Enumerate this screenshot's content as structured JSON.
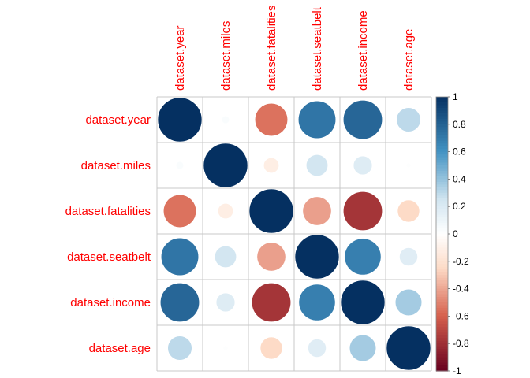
{
  "chart_data": {
    "type": "heatmap",
    "subtype": "correlation-circles",
    "variables": [
      "dataset.year",
      "dataset.miles",
      "dataset.fatalities",
      "dataset.seatbelt",
      "dataset.income",
      "dataset.age"
    ],
    "matrix": [
      [
        1.0,
        0.03,
        -0.55,
        0.72,
        0.78,
        0.3
      ],
      [
        0.03,
        1.0,
        -0.12,
        0.24,
        0.18,
        0.01
      ],
      [
        -0.55,
        -0.12,
        1.0,
        -0.42,
        -0.78,
        -0.25
      ],
      [
        0.72,
        0.24,
        -0.42,
        1.0,
        0.68,
        0.17
      ],
      [
        0.78,
        0.18,
        -0.78,
        0.68,
        1.0,
        0.36
      ],
      [
        0.3,
        0.01,
        -0.25,
        0.17,
        0.36,
        1.0
      ]
    ],
    "colorbar": {
      "range": [
        -1,
        1
      ],
      "ticks": [
        "1",
        "0.8",
        "0.6",
        "0.4",
        "0.2",
        "0",
        "-0.2",
        "-0.4",
        "-0.6",
        "-0.8",
        "-1"
      ],
      "colors": {
        "neg_end": "#67001f",
        "neg_mid": "#d6604d",
        "neg_light": "#fddbc7",
        "zero": "#ffffff",
        "pos_light": "#d1e5f0",
        "pos_mid": "#4393c3",
        "pos_end": "#053061"
      }
    },
    "label_color": "#ff0000",
    "grid": true
  }
}
